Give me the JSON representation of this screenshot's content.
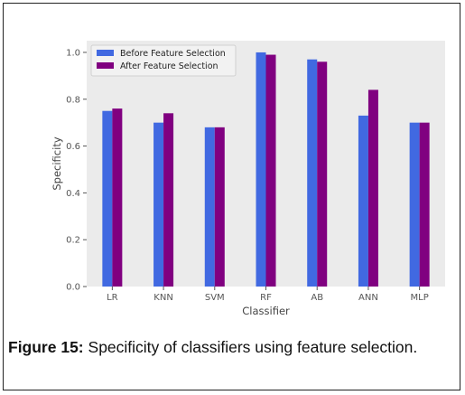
{
  "figure": {
    "label": "Figure 15:",
    "text": "Specificity of classifiers using feature selection."
  },
  "chart_data": {
    "type": "bar",
    "categories": [
      "LR",
      "KNN",
      "SVM",
      "RF",
      "AB",
      "ANN",
      "MLP"
    ],
    "series": [
      {
        "name": "Before Feature Selection",
        "values": [
          0.75,
          0.7,
          0.68,
          1.0,
          0.97,
          0.73,
          0.7
        ],
        "color": "#4169E1"
      },
      {
        "name": "After Feature Selection",
        "values": [
          0.76,
          0.74,
          0.68,
          0.99,
          0.96,
          0.84,
          0.7
        ],
        "color": "#800080"
      }
    ],
    "xlabel": "Classifier",
    "ylabel": "Specificity",
    "ylim": [
      0,
      1.05
    ],
    "yticks": [
      "0.0",
      "0.2",
      "0.4",
      "0.6",
      "0.8",
      "1.0"
    ],
    "grid": false,
    "legend_position": "top-left",
    "background": "#ebebeb"
  }
}
